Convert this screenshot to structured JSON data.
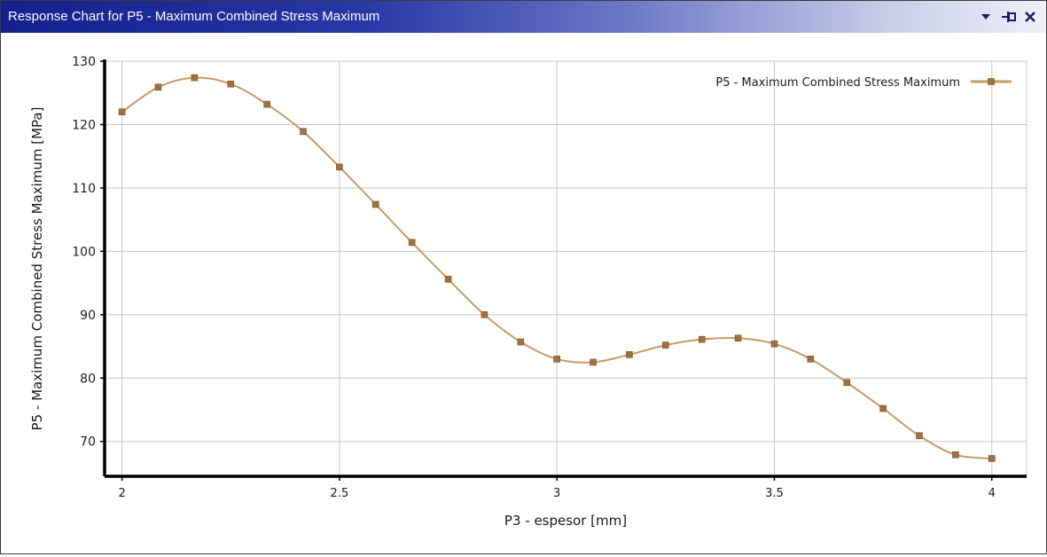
{
  "window": {
    "title": "Response Chart for P5 - Maximum Combined Stress Maximum",
    "controls": {
      "dropdown_icon": "dropdown-icon",
      "pin_icon": "pin-icon",
      "close_icon": "close-icon"
    }
  },
  "colors": {
    "titlebar_start": "#14208e",
    "series": "#c79a6a",
    "marker_fill": "#a0703e",
    "grid": "#c8c8c8"
  },
  "chart_data": {
    "type": "line",
    "title": "",
    "xlabel": "P3 - espesor  [mm]",
    "ylabel": "P5 - Maximum Combined Stress Maximum  [MPa]",
    "xlim": [
      1.96,
      4.08
    ],
    "ylim": [
      64.5,
      130
    ],
    "xticks": [
      2,
      2.5,
      3,
      3.5,
      4
    ],
    "xtick_labels": [
      "2",
      "2.5",
      "3",
      "3.5",
      "4"
    ],
    "yticks": [
      70,
      80,
      90,
      100,
      110,
      120,
      130
    ],
    "ytick_labels": [
      "70",
      "80",
      "90",
      "100",
      "110",
      "120",
      "130"
    ],
    "grid": true,
    "legend_position": "top-right",
    "series": [
      {
        "name": "P5 - Maximum Combined Stress Maximum",
        "x": [
          2.0,
          2.0833,
          2.1667,
          2.25,
          2.3333,
          2.4167,
          2.5,
          2.5833,
          2.6667,
          2.75,
          2.8333,
          2.9167,
          3.0,
          3.0833,
          3.1667,
          3.25,
          3.3333,
          3.4167,
          3.5,
          3.5833,
          3.6667,
          3.75,
          3.8333,
          3.9167,
          4.0
        ],
        "y": [
          122.0,
          125.9,
          127.4,
          126.4,
          123.2,
          118.9,
          113.3,
          107.4,
          101.4,
          95.6,
          90.0,
          85.7,
          83.0,
          82.5,
          83.7,
          85.2,
          86.1,
          86.3,
          85.4,
          83.0,
          79.3,
          75.2,
          70.9,
          67.9,
          67.3
        ]
      }
    ]
  }
}
